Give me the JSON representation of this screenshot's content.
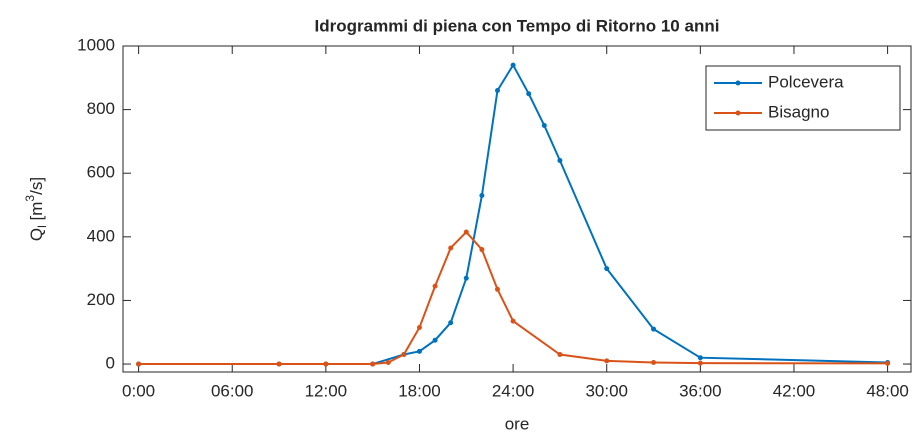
{
  "chart_data": {
    "type": "line",
    "title": "Idrogrammi di piena con Tempo di Ritorno 10 anni",
    "x_label": "ore",
    "y_label": {
      "base": "Q",
      "sub": "l",
      "open": " [m",
      "sup": "3",
      "close": "/s]"
    },
    "xlim": [
      -1,
      49.5
    ],
    "xticks": [
      {
        "value": 0,
        "label": "0:00"
      },
      {
        "value": 6,
        "label": "06:00"
      },
      {
        "value": 12,
        "label": "12:00"
      },
      {
        "value": 18,
        "label": "18:00"
      },
      {
        "value": 24,
        "label": "24:00"
      },
      {
        "value": 30,
        "label": "30:00"
      },
      {
        "value": 36,
        "label": "36:00"
      },
      {
        "value": 42,
        "label": "42:00"
      },
      {
        "value": 48,
        "label": "48:00"
      }
    ],
    "ylim": [
      -25,
      1000
    ],
    "yticks": [
      0,
      200,
      400,
      600,
      800,
      1000
    ],
    "legend": "northeast",
    "series": [
      {
        "name": "Polcevera",
        "color": "#0072bd",
        "x": [
          0,
          9,
          12,
          15,
          17,
          18,
          19,
          20,
          21,
          22,
          23,
          24,
          25,
          26,
          27,
          30,
          33,
          36,
          48
        ],
        "values": [
          0,
          0,
          0,
          0,
          30,
          40,
          75,
          130,
          270,
          530,
          860,
          940,
          850,
          750,
          640,
          300,
          110,
          20,
          5
        ]
      },
      {
        "name": "Bisagno",
        "color": "#d95319",
        "x": [
          0,
          9,
          12,
          15,
          16,
          17,
          18,
          19,
          20,
          21,
          22,
          23,
          24,
          27,
          30,
          33,
          36,
          48
        ],
        "values": [
          0,
          0,
          0,
          0,
          5,
          30,
          115,
          245,
          365,
          415,
          360,
          235,
          135,
          30,
          10,
          5,
          3,
          2
        ]
      }
    ]
  }
}
